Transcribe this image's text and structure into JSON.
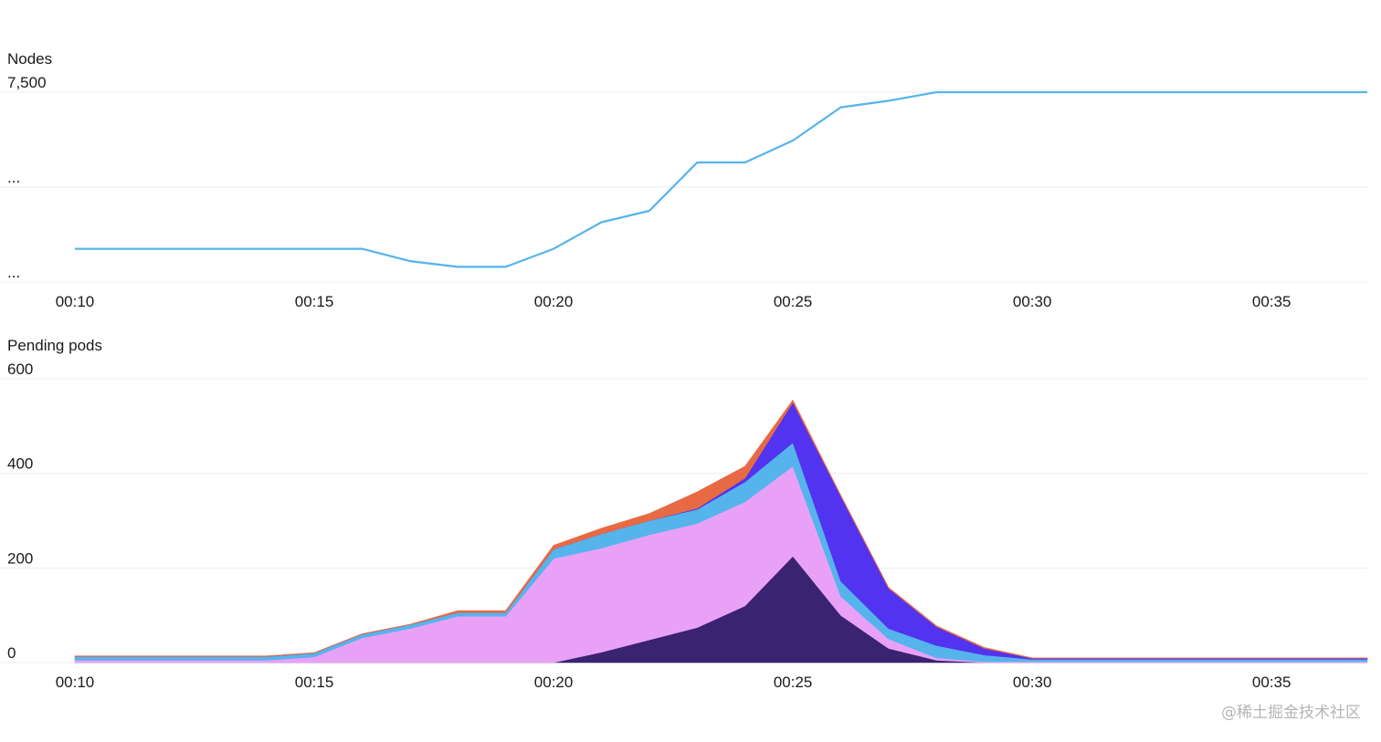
{
  "watermark": "@稀土掘金技术社区",
  "chart_data": [
    {
      "type": "line",
      "title": "Nodes",
      "y_tick_labels": [
        "7,500",
        "...",
        "..."
      ],
      "x_tick_labels": [
        "00:10",
        "00:15",
        "00:20",
        "00:25",
        "00:30",
        "00:35"
      ],
      "x_ticks": [
        10,
        15,
        20,
        25,
        30,
        35
      ],
      "xlim": [
        10,
        37
      ],
      "ylim": [
        0,
        1
      ],
      "grid": true,
      "color": "#55b4ec",
      "x": [
        10,
        11,
        12,
        13,
        14,
        15,
        16,
        17,
        18,
        19,
        20,
        21,
        22,
        23,
        24,
        25,
        26,
        27,
        28,
        29,
        30,
        31,
        32,
        33,
        34,
        35,
        36,
        37
      ],
      "values": [
        0.175,
        0.175,
        0.175,
        0.175,
        0.175,
        0.175,
        0.175,
        0.11,
        0.08,
        0.08,
        0.175,
        0.315,
        0.375,
        0.63,
        0.63,
        0.745,
        0.92,
        0.955,
        1.0,
        1.0,
        1.0,
        1.0,
        1.0,
        1.0,
        1.0,
        1.0,
        1.0,
        1.0
      ]
    },
    {
      "type": "area",
      "stacked": true,
      "title": "Pending pods",
      "y_tick_labels": [
        "600",
        "400",
        "200",
        "0"
      ],
      "y_ticks": [
        600,
        400,
        200,
        0
      ],
      "x_tick_labels": [
        "00:10",
        "00:15",
        "00:20",
        "00:25",
        "00:30",
        "00:35"
      ],
      "x_ticks": [
        10,
        15,
        20,
        25,
        30,
        35
      ],
      "xlim": [
        10,
        37
      ],
      "ylim": [
        0,
        600
      ],
      "grid": true,
      "x": [
        10,
        11,
        12,
        13,
        14,
        15,
        16,
        17,
        18,
        19,
        20,
        21,
        22,
        23,
        24,
        25,
        26,
        27,
        28,
        29,
        30,
        31,
        32,
        33,
        34,
        35,
        36,
        37
      ],
      "series": [
        {
          "color": "#3a2370",
          "values": [
            0,
            0,
            0,
            0,
            0,
            0,
            0,
            0,
            0,
            0,
            0,
            22,
            48,
            74,
            120,
            225,
            100,
            30,
            5,
            0,
            0,
            0,
            0,
            0,
            0,
            0,
            0,
            0
          ]
        },
        {
          "color": "#e9a1f7",
          "values": [
            5,
            5,
            5,
            5,
            5,
            12,
            52,
            72,
            98,
            98,
            220,
            220,
            222,
            220,
            220,
            190,
            40,
            20,
            5,
            2,
            2,
            2,
            2,
            2,
            2,
            2,
            2,
            2
          ]
        },
        {
          "color": "#55b4ec",
          "values": [
            8,
            8,
            8,
            8,
            8,
            8,
            8,
            8,
            8,
            8,
            20,
            30,
            30,
            30,
            42,
            50,
            32,
            22,
            26,
            14,
            5,
            5,
            5,
            5,
            5,
            5,
            5,
            5
          ]
        },
        {
          "color": "#5233f0",
          "values": [
            0,
            0,
            0,
            0,
            0,
            0,
            0,
            0,
            0,
            0,
            0,
            0,
            0,
            2,
            8,
            85,
            180,
            85,
            40,
            14,
            2,
            2,
            2,
            2,
            2,
            2,
            2,
            2
          ]
        },
        {
          "color": "#e86a44",
          "values": [
            1,
            1,
            1,
            1,
            1,
            1,
            1,
            1,
            4,
            4,
            8,
            12,
            15,
            35,
            25,
            5,
            2,
            2,
            2,
            2,
            1,
            1,
            1,
            1,
            1,
            1,
            1,
            1
          ]
        }
      ]
    }
  ]
}
